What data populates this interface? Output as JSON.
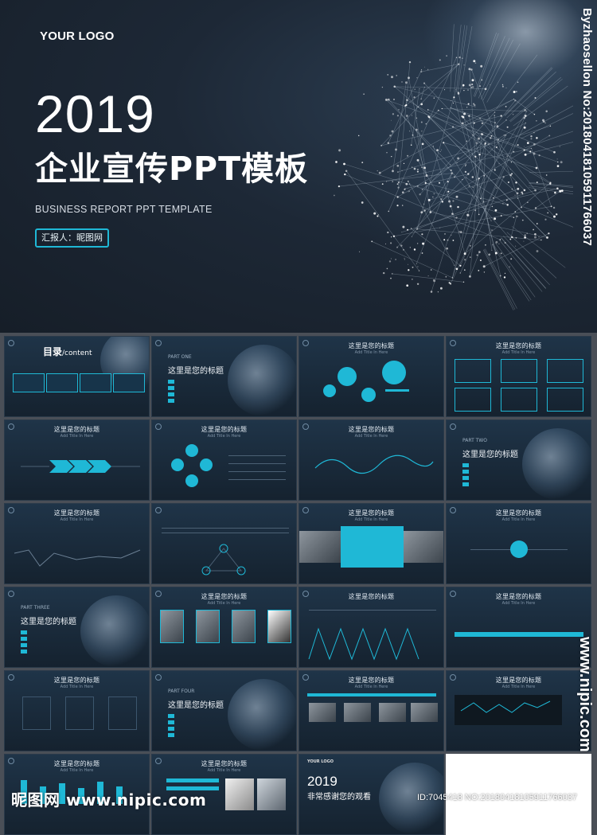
{
  "hero": {
    "logo": "YOUR LOGO",
    "year": "2019",
    "title_cn": "企业宣传PPT模板",
    "subtitle": "BUSINESS REPORT PPT  TEMPLATE",
    "presenter": "汇报人：昵图网",
    "side_watermark": "Byzhaosellon No:20180418105911766037"
  },
  "colors": {
    "accent": "#1fb8d6",
    "bg_dark": "#161e28",
    "frame": "#4a4f57"
  },
  "thumbs": {
    "toc": {
      "title": "目录",
      "title_en": "/content"
    },
    "part_one": {
      "part": "PART ONE",
      "title": "这里是您的标题"
    },
    "part_two": {
      "part": "PART TWO",
      "title": "这里是您的标题"
    },
    "part_three": {
      "part": "PART THREE",
      "title": "这里是您的标题"
    },
    "part_four": {
      "part": "PART FOUR",
      "title": "这里是您的标题"
    },
    "generic_title": "这里是您的标题",
    "generic_sub": "Add Title In Here",
    "thanks": {
      "logo": "YOUR LOGO",
      "year": "2019",
      "text": "非常感谢您的观看"
    }
  },
  "footer": {
    "site_left": "昵图网 www.nipic.com",
    "id_right": "ID:7045418 NO:20180418105911766037",
    "site_vertical": "www.nipic.com"
  }
}
